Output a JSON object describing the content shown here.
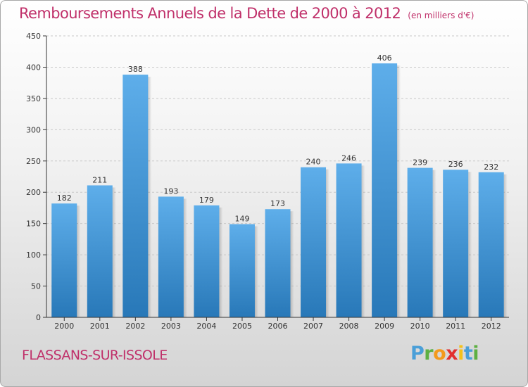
{
  "header": {
    "title": "Remboursements Annuels de la Dette de 2000 à 2012",
    "unit": "(en milliers d'€)"
  },
  "footer": {
    "commune": "FLASSANS-SUR-ISSOLE",
    "logo": [
      "P",
      "r",
      "o",
      "x",
      "i",
      "t",
      "i"
    ],
    "logo_colors": [
      "#4a9fd8",
      "#5db043",
      "#f39a1c",
      "#e2302f",
      "#f5c11b",
      "#4a9fd8",
      "#5db043"
    ]
  },
  "colors": {
    "bar_top": "#5eaeea",
    "bar_bottom": "#2878b8",
    "axis": "#333333",
    "grid": "#c8c8c8"
  },
  "chart_data": {
    "type": "bar",
    "title": "Remboursements Annuels de la Dette de 2000 à 2012",
    "subtitle": "(en milliers d'€)",
    "categories": [
      "2000",
      "2001",
      "2002",
      "2003",
      "2004",
      "2005",
      "2006",
      "2007",
      "2008",
      "2009",
      "2010",
      "2011",
      "2012"
    ],
    "values": [
      182,
      211,
      388,
      193,
      179,
      149,
      173,
      240,
      246,
      406,
      239,
      236,
      232
    ],
    "ylim": [
      0,
      450
    ],
    "yticks": [
      0,
      50,
      100,
      150,
      200,
      250,
      300,
      350,
      400,
      450
    ],
    "grid": true,
    "xlabel": "",
    "ylabel": ""
  }
}
